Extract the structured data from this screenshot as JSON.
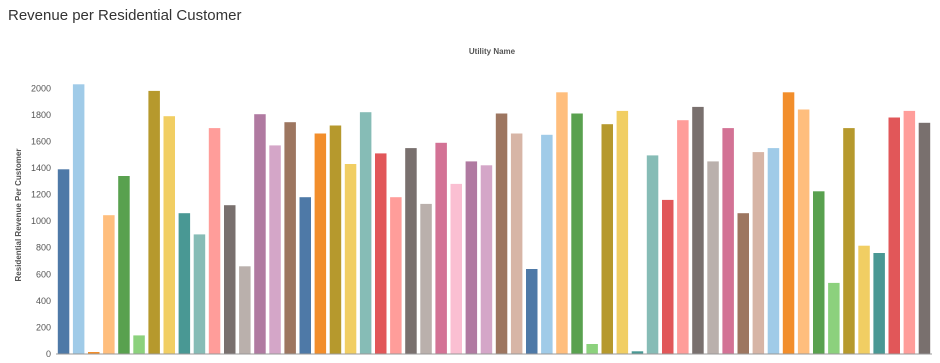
{
  "page": {
    "title": "Revenue per Residential Customer"
  },
  "chart_data": {
    "type": "bar",
    "title": "Revenue per Residential Customer",
    "xlabel": "Utility Name",
    "ylabel": "Residential Revenue Per Customer",
    "ylim": [
      0,
      2100
    ],
    "yticks": [
      0,
      200,
      400,
      600,
      800,
      1000,
      1200,
      1400,
      1600,
      1800,
      2000
    ],
    "grid": false,
    "values": [
      1390,
      2030,
      15,
      1045,
      1340,
      140,
      1980,
      1790,
      1060,
      900,
      1700,
      1120,
      660,
      1805,
      1570,
      1745,
      1180,
      1660,
      1720,
      1430,
      1820,
      1510,
      1180,
      1550,
      1130,
      1590,
      1280,
      1450,
      1420,
      1810,
      1660,
      640,
      1650,
      1970,
      1810,
      75,
      1730,
      1830,
      20,
      1495,
      1160,
      1760,
      1860,
      1450,
      1700,
      1060,
      1520,
      1550,
      1970,
      1840,
      1225,
      535,
      1700,
      815,
      760,
      1780,
      1830,
      1740
    ],
    "colors": [
      "#4e79a7",
      "#a0cbe8",
      "#f28e2b",
      "#ffbe7d",
      "#59a14f",
      "#8cd17d",
      "#b6992d",
      "#f1ce63",
      "#499894",
      "#86bcb6",
      "#ff9d9a",
      "#79706e",
      "#bab0ac",
      "#b07aa1",
      "#d4a6c8",
      "#9d7660",
      "#4e79a7",
      "#f28e2b",
      "#b6992d",
      "#f1ce63",
      "#86bcb6",
      "#e15759",
      "#ff9d9a",
      "#79706e",
      "#bab0ac",
      "#d37295",
      "#fabfd2",
      "#b07aa1",
      "#d4a6c8",
      "#9d7660",
      "#d7b5a6",
      "#4e79a7",
      "#a0cbe8",
      "#ffbe7d",
      "#59a14f",
      "#8cd17d",
      "#b6992d",
      "#f1ce63",
      "#499894",
      "#86bcb6",
      "#e15759",
      "#ff9d9a",
      "#79706e",
      "#bab0ac",
      "#d37295",
      "#9d7660",
      "#d7b5a6",
      "#a0cbe8",
      "#f28e2b",
      "#ffbe7d",
      "#59a14f",
      "#8cd17d",
      "#b6992d",
      "#f1ce63",
      "#499894",
      "#e15759",
      "#ff9d9a",
      "#79706e"
    ],
    "axis_color": "#999999",
    "text_color": "#555555"
  }
}
